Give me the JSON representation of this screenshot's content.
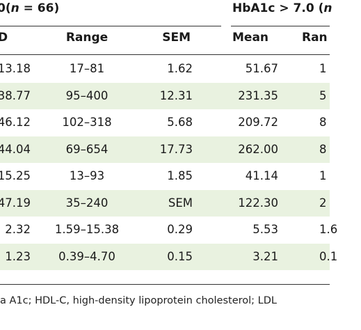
{
  "table": {
    "group_left": {
      "prefix": "0(",
      "n_label": "n",
      "suffix": " = 66)"
    },
    "group_right": {
      "prefix": "HbA1c > 7.0 (",
      "n_label": "n"
    },
    "columns": [
      "D",
      "Range",
      "SEM",
      "Mean",
      "Ran"
    ],
    "rows": [
      [
        "13.18",
        "17–81",
        "1.62",
        "51.67",
        "1"
      ],
      [
        "38.77",
        "95–400",
        "12.31",
        "231.35",
        "5"
      ],
      [
        "46.12",
        "102–318",
        "5.68",
        "209.72",
        "8"
      ],
      [
        "44.04",
        "69–654",
        "17.73",
        "262.00",
        "8"
      ],
      [
        "15.25",
        "13–93",
        "1.85",
        "41.14",
        "1"
      ],
      [
        "47.19",
        "35–240",
        "SEM",
        "122.30",
        "2"
      ],
      [
        "2.32",
        "1.59–15.38",
        "0.29",
        "5.53",
        "1.6"
      ],
      [
        "1.23",
        "0.39–4.70",
        "0.15",
        "3.21",
        "0.1"
      ]
    ]
  },
  "footnote": "a A1c; HDL-C, high-density lipoprotein cholesterol; LDL",
  "colors": {
    "row_alt": "#e9f2e0",
    "rule": "#333333"
  }
}
